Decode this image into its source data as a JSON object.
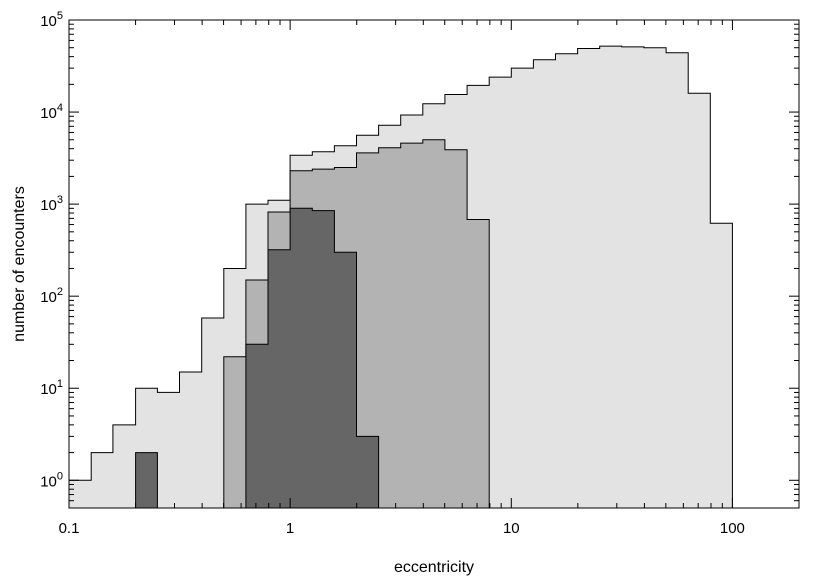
{
  "chart_data": {
    "type": "histogram",
    "xlabel": "eccentricity",
    "ylabel": "number of encounters",
    "x_scale": "log",
    "y_scale": "log",
    "xlim": [
      0.1,
      200
    ],
    "ylim": [
      0.5,
      100000
    ],
    "x_ticks": [
      {
        "value": 0.1,
        "label": "0.1"
      },
      {
        "value": 1,
        "label": "1"
      },
      {
        "value": 10,
        "label": "10"
      },
      {
        "value": 100,
        "label": "100"
      }
    ],
    "y_ticks": [
      {
        "value": 1,
        "base": "10",
        "exp": "0"
      },
      {
        "value": 10,
        "base": "10",
        "exp": "1"
      },
      {
        "value": 100,
        "base": "10",
        "exp": "2"
      },
      {
        "value": 1000,
        "base": "10",
        "exp": "3"
      },
      {
        "value": 10000,
        "base": "10",
        "exp": "4"
      },
      {
        "value": 100000,
        "base": "10",
        "exp": "5"
      }
    ],
    "grid": false,
    "legend": "none",
    "bin_edges": [
      0.1,
      0.126,
      0.158,
      0.2,
      0.251,
      0.316,
      0.398,
      0.501,
      0.631,
      0.794,
      1.0,
      1.259,
      1.585,
      1.995,
      2.512,
      3.162,
      3.981,
      5.012,
      6.31,
      7.943,
      10.0,
      12.59,
      15.85,
      19.95,
      25.12,
      31.62,
      39.81,
      50.12,
      63.1,
      79.43,
      100.0
    ],
    "series": [
      {
        "fill": "#e3e3e3",
        "values": [
          1,
          2,
          4,
          10,
          9,
          15,
          58,
          200,
          1000,
          1100,
          3400,
          3700,
          4300,
          5600,
          7200,
          9300,
          12300,
          15500,
          19500,
          24000,
          30000,
          37000,
          43000,
          49000,
          52000,
          51000,
          50000,
          44000,
          16000,
          620
        ]
      },
      {
        "fill": "#b3b3b3",
        "values": [
          null,
          null,
          null,
          null,
          null,
          0.5,
          0.5,
          22,
          150,
          820,
          2300,
          2400,
          2500,
          3600,
          4100,
          4600,
          5000,
          3900,
          680,
          null,
          null,
          null,
          null,
          null,
          null,
          null,
          null,
          null,
          null,
          null
        ]
      },
      {
        "fill": "#666666",
        "values": [
          null,
          null,
          null,
          2,
          null,
          null,
          null,
          null,
          30,
          320,
          900,
          850,
          300,
          3,
          null,
          null,
          null,
          null,
          null,
          null,
          null,
          null,
          null,
          null,
          null,
          null,
          null,
          null,
          null,
          null
        ]
      }
    ]
  }
}
